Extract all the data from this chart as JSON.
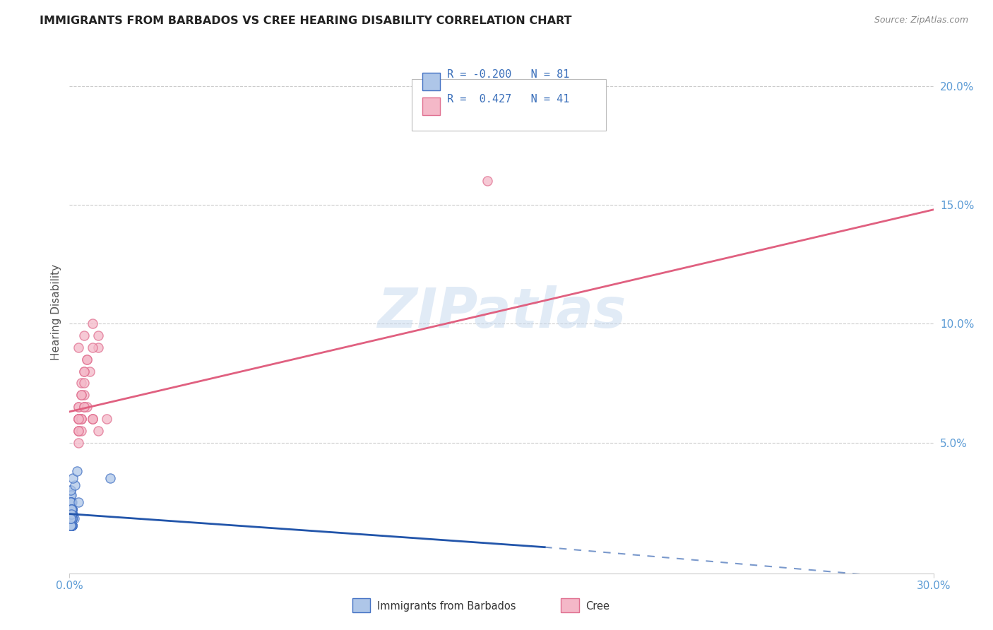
{
  "title": "IMMIGRANTS FROM BARBADOS VS CREE HEARING DISABILITY CORRELATION CHART",
  "source": "Source: ZipAtlas.com",
  "ylabel": "Hearing Disability",
  "xlim": [
    0.0,
    0.3
  ],
  "ylim": [
    -0.005,
    0.215
  ],
  "xticks": [
    0.0,
    0.3
  ],
  "xticklabels": [
    "0.0%",
    "30.0%"
  ],
  "yticks": [
    0.05,
    0.1,
    0.15,
    0.2
  ],
  "yticklabels_right": [
    "5.0%",
    "10.0%",
    "15.0%",
    "20.0%"
  ],
  "watermark": "ZIPatlas",
  "barbados_color": "#aec6e8",
  "cree_color": "#f4b8c8",
  "barbados_edge": "#4472c4",
  "cree_edge": "#e07090",
  "line_barbados_color": "#2255aa",
  "line_cree_color": "#e06080",
  "legend_R_barbados": "-0.200",
  "legend_N_barbados": "81",
  "legend_R_cree": "0.427",
  "legend_N_cree": "41",
  "barbados_line_x": [
    0.0,
    0.165,
    0.3
  ],
  "barbados_line_y": [
    0.02,
    0.006,
    -0.008
  ],
  "barbados_line_solid_end": 0.165,
  "cree_line_x": [
    0.0,
    0.3
  ],
  "cree_line_y": [
    0.063,
    0.148
  ],
  "barbados_scatter_x": [
    0.0005,
    0.0008,
    0.001,
    0.0012,
    0.0015,
    0.0005,
    0.0008,
    0.001,
    0.0007,
    0.0006,
    0.0005,
    0.0009,
    0.001,
    0.0008,
    0.0006,
    0.0005,
    0.0007,
    0.0009,
    0.001,
    0.0005,
    0.0006,
    0.0008,
    0.0005,
    0.0007,
    0.0009,
    0.001,
    0.0005,
    0.0008,
    0.0006,
    0.0007,
    0.0004,
    0.0006,
    0.0008,
    0.0005,
    0.0007,
    0.0009,
    0.0005,
    0.0008,
    0.001,
    0.0006,
    0.0004,
    0.0006,
    0.0005,
    0.0007,
    0.0008,
    0.0005,
    0.0006,
    0.0007,
    0.0005,
    0.0008,
    0.0004,
    0.0005,
    0.0007,
    0.0006,
    0.0008,
    0.0005,
    0.0006,
    0.0007,
    0.0005,
    0.0008,
    0.0004,
    0.0005,
    0.0006,
    0.0007,
    0.0004,
    0.0006,
    0.0005,
    0.0004,
    0.0006,
    0.0005,
    0.003,
    0.0018,
    0.0012,
    0.0025,
    0.0008,
    0.0004,
    0.0005,
    0.0006,
    0.0007,
    0.0004,
    0.014
  ],
  "barbados_scatter_y": [
    0.03,
    0.025,
    0.022,
    0.02,
    0.018,
    0.028,
    0.015,
    0.018,
    0.022,
    0.025,
    0.02,
    0.018,
    0.015,
    0.022,
    0.028,
    0.03,
    0.018,
    0.015,
    0.02,
    0.022,
    0.025,
    0.018,
    0.02,
    0.015,
    0.022,
    0.018,
    0.025,
    0.02,
    0.018,
    0.015,
    0.022,
    0.018,
    0.02,
    0.015,
    0.018,
    0.022,
    0.02,
    0.015,
    0.018,
    0.022,
    0.02,
    0.018,
    0.025,
    0.02,
    0.018,
    0.015,
    0.022,
    0.018,
    0.02,
    0.015,
    0.018,
    0.022,
    0.02,
    0.015,
    0.018,
    0.025,
    0.02,
    0.018,
    0.015,
    0.022,
    0.02,
    0.018,
    0.015,
    0.022,
    0.018,
    0.02,
    0.015,
    0.018,
    0.022,
    0.02,
    0.025,
    0.032,
    0.035,
    0.038,
    0.018,
    0.015,
    0.018,
    0.022,
    0.02,
    0.018,
    0.035
  ],
  "cree_scatter_x": [
    0.003,
    0.005,
    0.003,
    0.008,
    0.005,
    0.003,
    0.01,
    0.004,
    0.005,
    0.007,
    0.004,
    0.003,
    0.006,
    0.004,
    0.003,
    0.005,
    0.008,
    0.003,
    0.004,
    0.006,
    0.003,
    0.005,
    0.008,
    0.01,
    0.003,
    0.004,
    0.005,
    0.003,
    0.006,
    0.004,
    0.003,
    0.004,
    0.005,
    0.008,
    0.003,
    0.01,
    0.013,
    0.003,
    0.005,
    0.008,
    0.145
  ],
  "cree_scatter_y": [
    0.065,
    0.07,
    0.06,
    0.1,
    0.095,
    0.055,
    0.09,
    0.06,
    0.065,
    0.08,
    0.075,
    0.055,
    0.085,
    0.06,
    0.065,
    0.08,
    0.06,
    0.09,
    0.07,
    0.085,
    0.06,
    0.065,
    0.09,
    0.095,
    0.06,
    0.07,
    0.08,
    0.06,
    0.065,
    0.06,
    0.06,
    0.055,
    0.075,
    0.06,
    0.05,
    0.055,
    0.06,
    0.055,
    0.065,
    0.06,
    0.16
  ]
}
